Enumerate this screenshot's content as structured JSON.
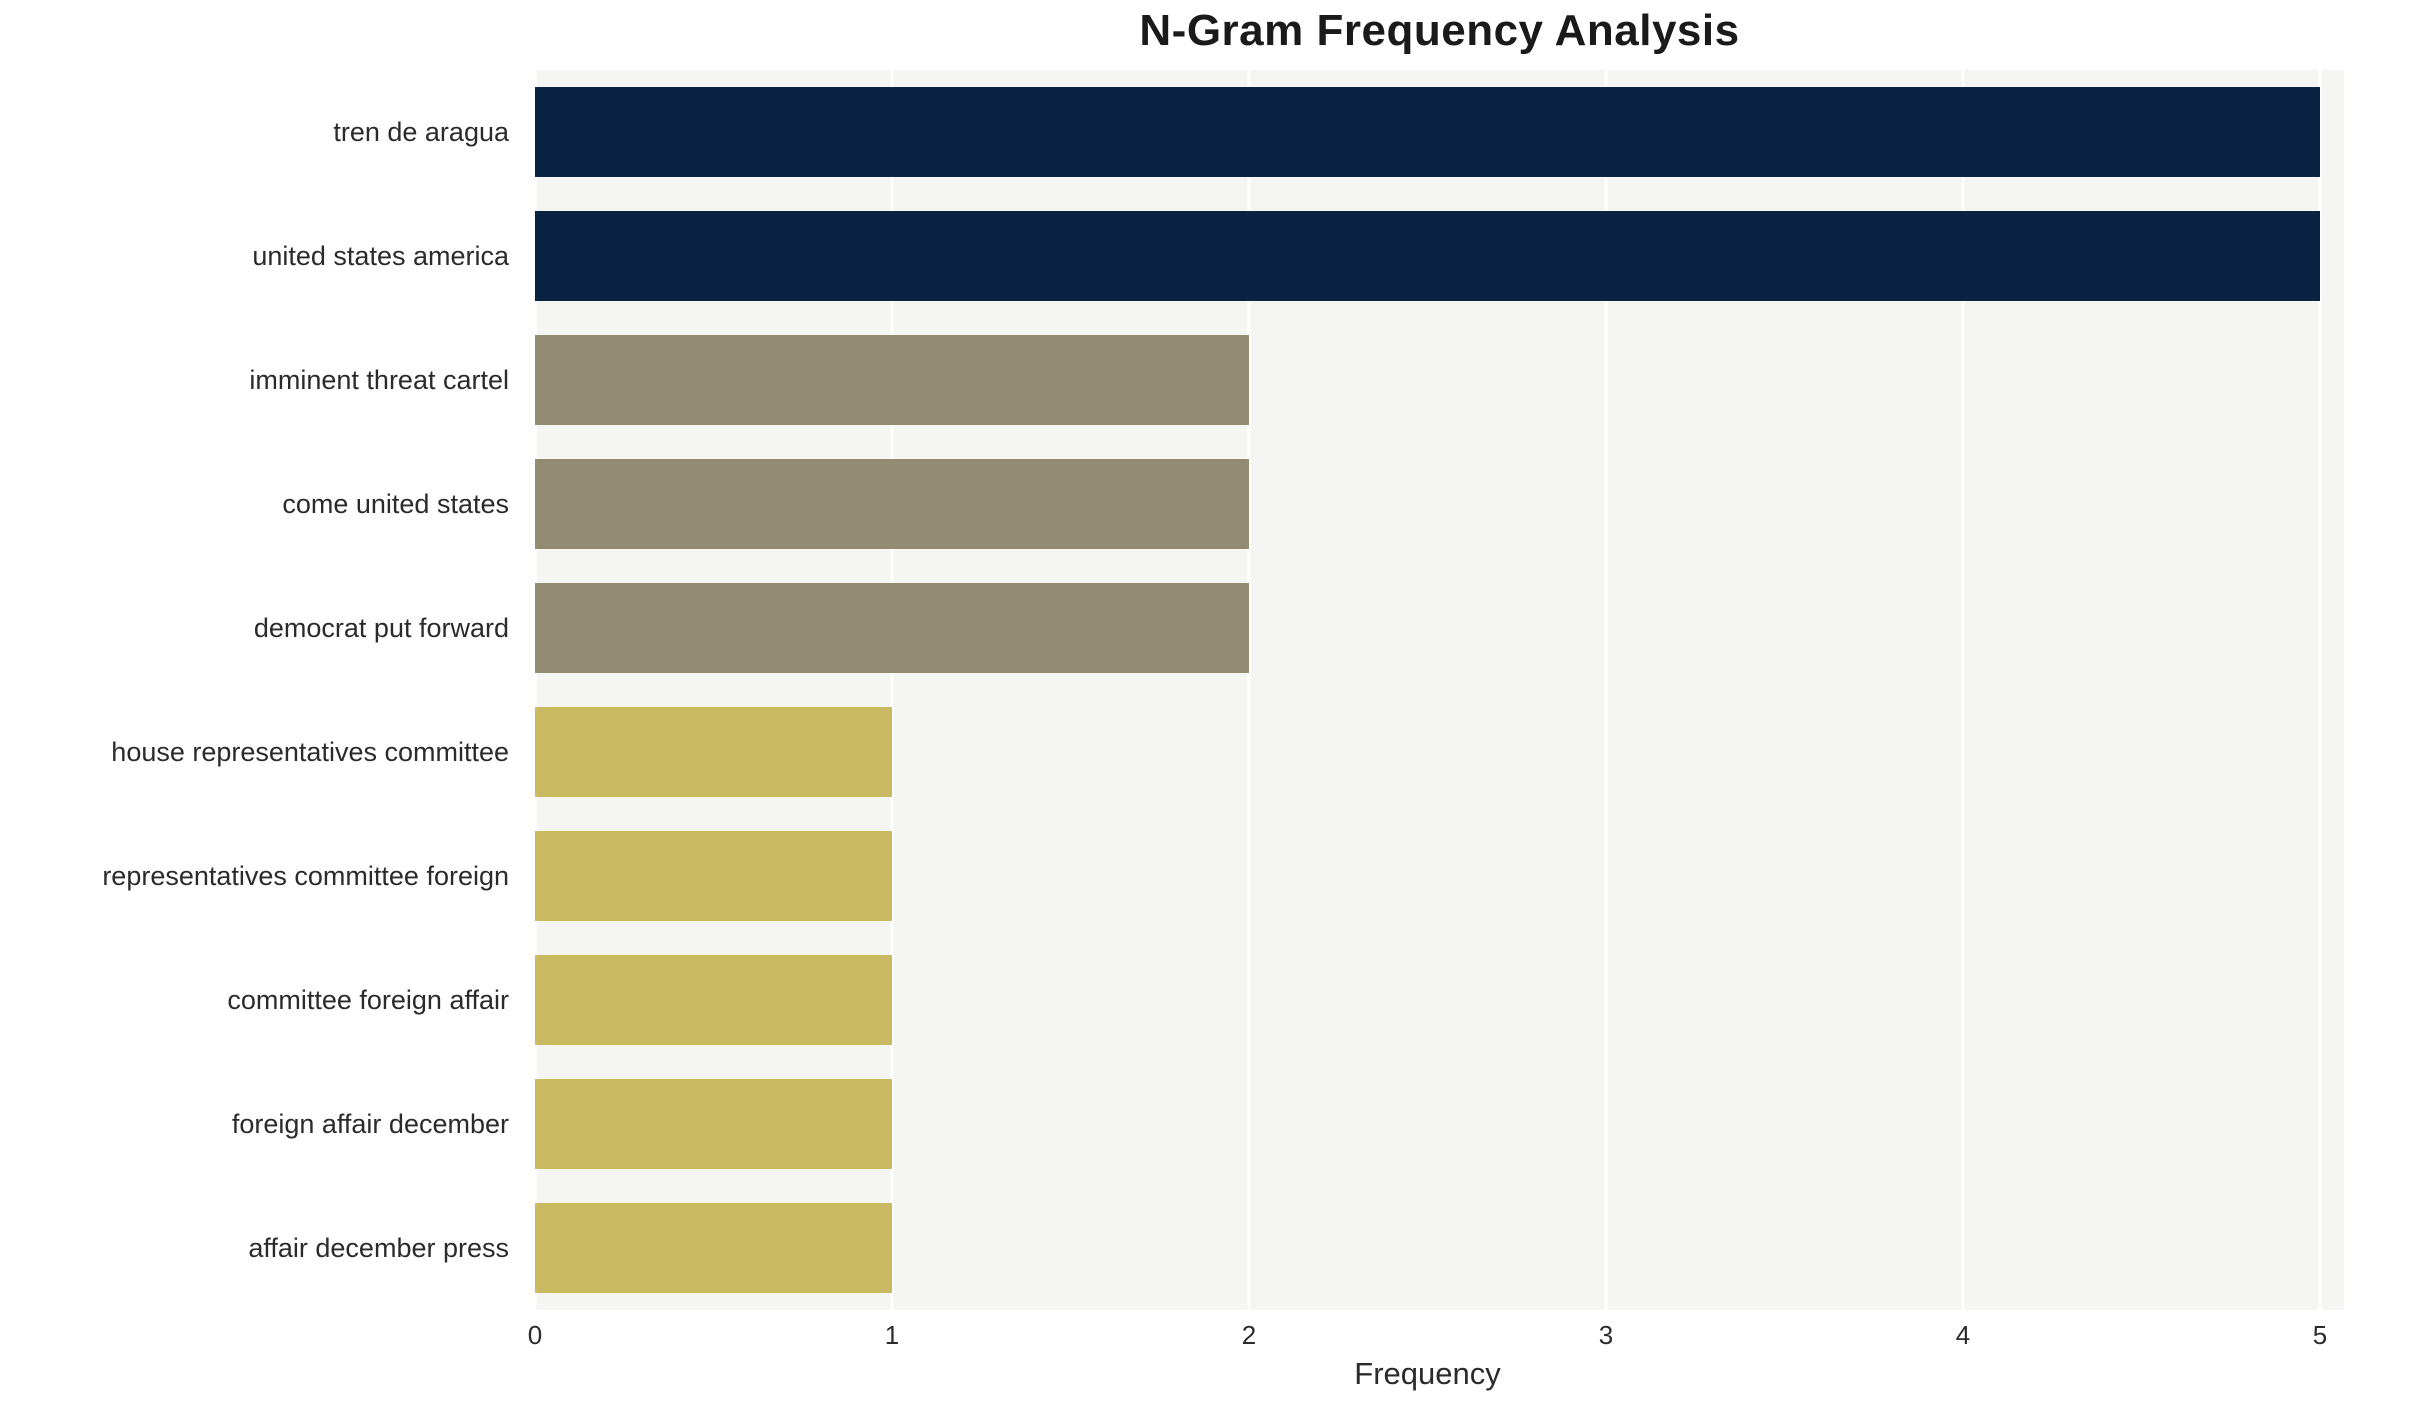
{
  "chart_data": {
    "type": "bar",
    "orientation": "horizontal",
    "title": "N-Gram Frequency Analysis",
    "xlabel": "Frequency",
    "ylabel": "",
    "xlim": [
      0,
      5
    ],
    "x_ticks": [
      0,
      1,
      2,
      3,
      4,
      5
    ],
    "grid": true,
    "legend": "none",
    "plot_background": "#f5f5f3",
    "gridline_color": "#ffffff",
    "categories": [
      "tren de aragua",
      "united states america",
      "imminent threat cartel",
      "come united states",
      "democrat put forward",
      "house representatives committee",
      "representatives committee foreign",
      "committee foreign affair",
      "foreign affair december",
      "affair december press"
    ],
    "values": [
      5,
      5,
      2,
      2,
      2,
      1,
      1,
      1,
      1,
      1
    ],
    "bar_colors": [
      "#0a2342",
      "#0a2342",
      "#948c72",
      "#948c72",
      "#948c72",
      "#c9ba62",
      "#c9ba62",
      "#c9ba62",
      "#c9ba62",
      "#c9ba62"
    ]
  }
}
